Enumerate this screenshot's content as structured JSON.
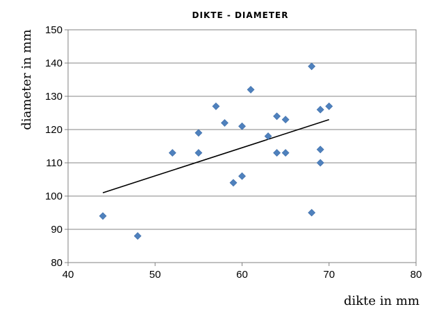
{
  "chart_data": {
    "type": "scatter",
    "title": "DIKTE - DIAMETER",
    "xlabel": "dikte in mm",
    "ylabel": "diameter in mm",
    "xlim": [
      40,
      80
    ],
    "ylim": [
      80,
      150
    ],
    "xticks": [
      40,
      50,
      60,
      70,
      80
    ],
    "yticks": [
      80,
      90,
      100,
      110,
      120,
      130,
      140,
      150
    ],
    "grid": "horizontal",
    "legend": "none",
    "marker_color": "#4f81bd",
    "trendline_color": "#000000",
    "series": [
      {
        "points": [
          {
            "x": 44,
            "y": 94
          },
          {
            "x": 48,
            "y": 88
          },
          {
            "x": 52,
            "y": 113
          },
          {
            "x": 55,
            "y": 113
          },
          {
            "x": 55,
            "y": 119
          },
          {
            "x": 57,
            "y": 127
          },
          {
            "x": 58,
            "y": 122
          },
          {
            "x": 59,
            "y": 104
          },
          {
            "x": 60,
            "y": 106
          },
          {
            "x": 60,
            "y": 121
          },
          {
            "x": 61,
            "y": 132
          },
          {
            "x": 63,
            "y": 118
          },
          {
            "x": 64,
            "y": 124
          },
          {
            "x": 64,
            "y": 113
          },
          {
            "x": 65,
            "y": 123
          },
          {
            "x": 65,
            "y": 113
          },
          {
            "x": 68,
            "y": 139
          },
          {
            "x": 68,
            "y": 95
          },
          {
            "x": 69,
            "y": 126
          },
          {
            "x": 69,
            "y": 114
          },
          {
            "x": 69,
            "y": 110
          },
          {
            "x": 70,
            "y": 127
          }
        ]
      }
    ],
    "trendline": {
      "type": "linear",
      "points": [
        {
          "x": 44,
          "y": 101
        },
        {
          "x": 70,
          "y": 123
        }
      ]
    }
  }
}
